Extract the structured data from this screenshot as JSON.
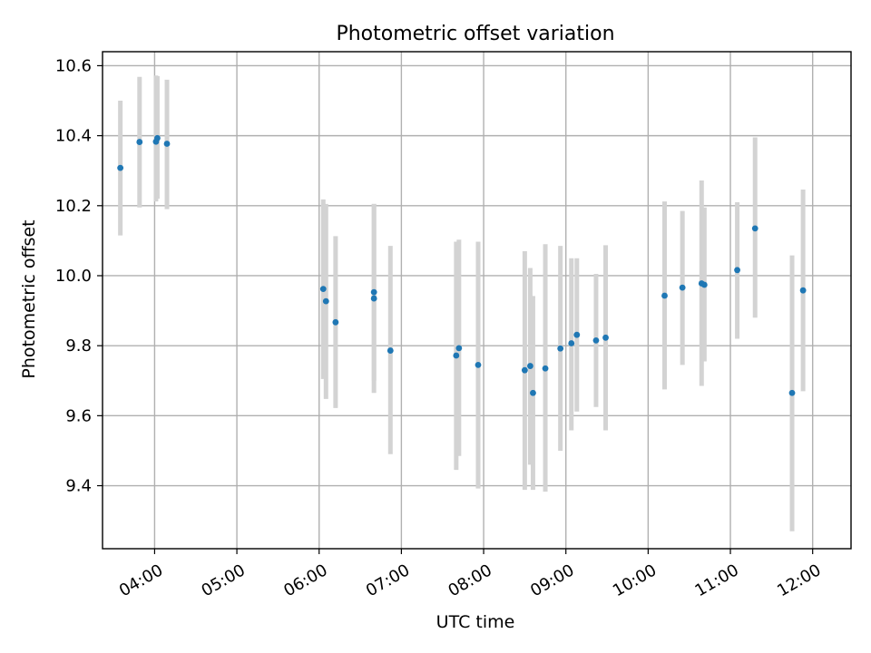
{
  "chart_data": {
    "type": "scatter",
    "title": "Photometric offset variation",
    "xlabel": "UTC time",
    "ylabel": "Photometric offset",
    "grid": true,
    "marker_color": "#1f77b4",
    "errorbar_color": "#d3d3d3",
    "xlim": [
      "03:22",
      "12:28"
    ],
    "ylim": [
      9.22,
      10.64
    ],
    "xticks": [
      "04:00",
      "05:00",
      "06:00",
      "07:00",
      "08:00",
      "09:00",
      "10:00",
      "11:00",
      "12:00"
    ],
    "yticks": [
      9.4,
      9.6,
      9.8,
      10.0,
      10.2,
      10.4,
      10.6
    ],
    "ytick_labels": [
      "9.4",
      "9.6",
      "9.8",
      "10.0",
      "10.2",
      "10.4",
      "10.6"
    ],
    "series": [
      {
        "points": [
          {
            "t": "03:35",
            "y": 10.308,
            "lo": 10.115,
            "hi": 10.5
          },
          {
            "t": "03:49",
            "y": 10.382,
            "lo": 10.195,
            "hi": 10.568
          },
          {
            "t": "04:01",
            "y": 10.383,
            "lo": 10.212,
            "hi": 10.572
          },
          {
            "t": "04:02",
            "y": 10.393,
            "lo": 10.22,
            "hi": 10.57
          },
          {
            "t": "04:09",
            "y": 10.377,
            "lo": 10.19,
            "hi": 10.56
          },
          {
            "t": "06:03",
            "y": 9.962,
            "lo": 9.705,
            "hi": 10.218
          },
          {
            "t": "06:05",
            "y": 9.927,
            "lo": 9.648,
            "hi": 10.205
          },
          {
            "t": "06:12",
            "y": 9.867,
            "lo": 9.622,
            "hi": 10.113
          },
          {
            "t": "06:40",
            "y": 9.953,
            "lo": 9.7,
            "hi": 10.205
          },
          {
            "t": "06:40",
            "y": 9.935,
            "lo": 9.665,
            "hi": 10.205
          },
          {
            "t": "06:52",
            "y": 9.786,
            "lo": 9.49,
            "hi": 10.085
          },
          {
            "t": "07:40",
            "y": 9.772,
            "lo": 9.445,
            "hi": 10.097
          },
          {
            "t": "07:42",
            "y": 9.793,
            "lo": 9.485,
            "hi": 10.103
          },
          {
            "t": "07:56",
            "y": 9.745,
            "lo": 9.392,
            "hi": 10.097
          },
          {
            "t": "08:30",
            "y": 9.73,
            "lo": 9.388,
            "hi": 10.07
          },
          {
            "t": "08:34",
            "y": 9.742,
            "lo": 9.46,
            "hi": 10.022
          },
          {
            "t": "08:36",
            "y": 9.665,
            "lo": 9.388,
            "hi": 9.942
          },
          {
            "t": "08:45",
            "y": 9.735,
            "lo": 9.383,
            "hi": 10.09
          },
          {
            "t": "08:56",
            "y": 9.792,
            "lo": 9.5,
            "hi": 10.085
          },
          {
            "t": "09:04",
            "y": 9.807,
            "lo": 9.558,
            "hi": 10.05
          },
          {
            "t": "09:08",
            "y": 9.831,
            "lo": 9.612,
            "hi": 10.05
          },
          {
            "t": "09:22",
            "y": 9.815,
            "lo": 9.625,
            "hi": 10.005
          },
          {
            "t": "09:29",
            "y": 9.823,
            "lo": 9.558,
            "hi": 10.087
          },
          {
            "t": "10:12",
            "y": 9.943,
            "lo": 9.675,
            "hi": 10.212
          },
          {
            "t": "10:25",
            "y": 9.966,
            "lo": 9.745,
            "hi": 10.185
          },
          {
            "t": "10:39",
            "y": 9.978,
            "lo": 9.685,
            "hi": 10.272
          },
          {
            "t": "10:41",
            "y": 9.974,
            "lo": 9.755,
            "hi": 10.195
          },
          {
            "t": "11:05",
            "y": 10.016,
            "lo": 9.82,
            "hi": 10.21
          },
          {
            "t": "11:18",
            "y": 10.135,
            "lo": 9.88,
            "hi": 10.395
          },
          {
            "t": "11:45",
            "y": 9.665,
            "lo": 9.27,
            "hi": 10.058
          },
          {
            "t": "11:53",
            "y": 9.958,
            "lo": 9.67,
            "hi": 10.246
          }
        ]
      }
    ]
  }
}
